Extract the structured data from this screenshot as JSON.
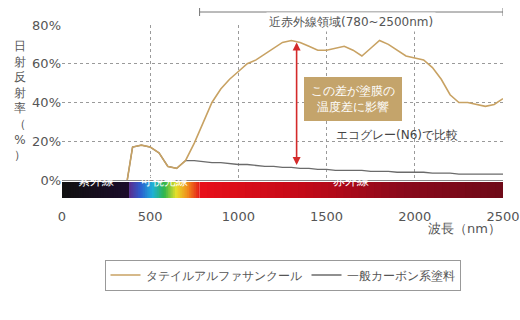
{
  "chart_data": {
    "type": "line",
    "x": [
      370,
      400,
      450,
      500,
      550,
      600,
      650,
      700,
      750,
      800,
      850,
      900,
      950,
      1000,
      1050,
      1100,
      1150,
      1200,
      1250,
      1300,
      1350,
      1400,
      1450,
      1500,
      1550,
      1600,
      1650,
      1700,
      1750,
      1800,
      1850,
      1900,
      1950,
      2000,
      2050,
      2100,
      2150,
      2200,
      2250,
      2300,
      2350,
      2400,
      2450,
      2500
    ],
    "series": [
      {
        "name": "タテイルアルファサンクール",
        "color": "#c8a263",
        "values": [
          0,
          17,
          18,
          17,
          14,
          7,
          6,
          10,
          19,
          30,
          40,
          47,
          52,
          56,
          60,
          62,
          65,
          68,
          71,
          72,
          71,
          69,
          67,
          67,
          68,
          69,
          67,
          64,
          68,
          72,
          70,
          67,
          64,
          63,
          62,
          58,
          52,
          44,
          40,
          40,
          39,
          38,
          39,
          42
        ]
      },
      {
        "name": "一般カーボン系塗料",
        "color": "#6b6b6b",
        "values": [
          0,
          17,
          18,
          17,
          14,
          7,
          6,
          10,
          10,
          9.5,
          9,
          9,
          8.5,
          8,
          8,
          7.5,
          7,
          7,
          6.5,
          6.5,
          6,
          6,
          5.5,
          5.5,
          5,
          5,
          5,
          5,
          4.5,
          4.5,
          4.5,
          4,
          4,
          4,
          4,
          3.5,
          3.5,
          3.5,
          3,
          3,
          3,
          3,
          3,
          3
        ]
      }
    ],
    "xlim": [
      0,
      2500
    ],
    "xticks": [
      0,
      500,
      1000,
      1500,
      2000,
      2500
    ],
    "ylim": [
      0,
      80
    ],
    "yticks": [
      {
        "value": 0,
        "label": "0%"
      },
      {
        "value": 20,
        "label": "20%"
      },
      {
        "value": 40,
        "label": "40%"
      },
      {
        "value": 60,
        "label": "60%"
      },
      {
        "value": 80,
        "label": "80%"
      }
    ],
    "x_label": "波長（nm）",
    "y_label": "日射反射率（%）",
    "grid": true,
    "legend": "bottom",
    "bands": [
      {
        "label": "紫外線",
        "start": 0,
        "end": 380
      },
      {
        "label": "可視光線",
        "start": 380,
        "end": 780
      },
      {
        "label": "赤外線",
        "start": 780,
        "end": 2500
      }
    ],
    "range_note": {
      "text": "近赤外線領域(780~2500nm)",
      "start": 780,
      "end": 2500
    },
    "difference": {
      "x": 1330,
      "from": 7,
      "to": 71,
      "text_lines": [
        "この差が塗膜の",
        "温度差に影響"
      ]
    },
    "comparison_note": "エコグレー(N6)で比較"
  }
}
